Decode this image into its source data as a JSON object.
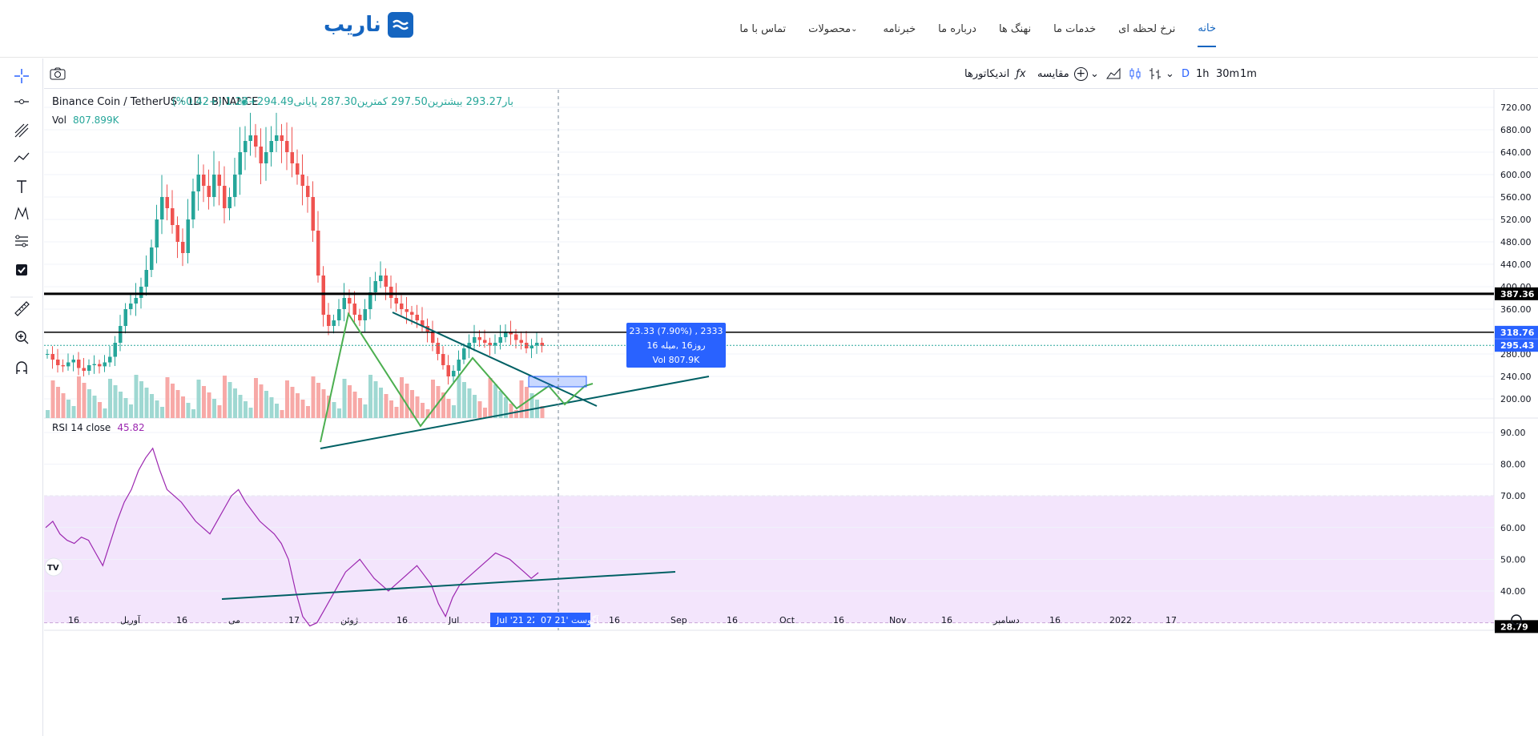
{
  "site": {
    "logo_text": "ناریب",
    "nav": [
      {
        "label": "خانه",
        "active": true
      },
      {
        "label": "نرخ لحظه ای"
      },
      {
        "label": "خدمات ما"
      },
      {
        "label": "نهنگ ها"
      },
      {
        "label": "درباره ما"
      },
      {
        "label": "خبرنامه"
      },
      {
        "label": "محصولات"
      },
      {
        "label": "تماس با ما"
      }
    ]
  },
  "toolbar": {
    "intervals": [
      "1m",
      "30m",
      "1h",
      "D"
    ],
    "indicators_label": "اندیکاتورها",
    "compare_label": "مقایسه"
  },
  "legend": {
    "symbol": "Binance Coin / TetherUS · 1D · BINANCE",
    "ohlc": "بار293.27  بیشترین297.50  کمترین287.30  پایانی294.49+1.23 (+0.42%)",
    "vol_label": "Vol",
    "vol_value": "807.899K",
    "rsi_label": "RSI 14 close",
    "rsi_value": "45.82"
  },
  "measure_tooltip": {
    "line1": "23.33 (7.90%) , 2333",
    "line2": "روز16 ,میله 16",
    "line3": "Vol 807.9K"
  },
  "price_badges": [
    "387.36",
    "318.76",
    "295.43"
  ],
  "rsi_badge": "28.79",
  "colors": {
    "up": "#26a69a",
    "down": "#ef5350",
    "accent": "#2962ff",
    "pattern": "#4caf50",
    "trend": "#006064",
    "rsi": "#9c27b0"
  },
  "chart_data": [
    {
      "type": "candlestick",
      "title": "Binance Coin / TetherUS · 1D · BINANCE",
      "price_axis": [
        720,
        680,
        640,
        600,
        560,
        520,
        480,
        440,
        400,
        360,
        320,
        280,
        240,
        200
      ],
      "time_axis": [
        "16",
        "آوریل",
        "16",
        "می",
        "17",
        "ژوئن",
        "16",
        "Jul",
        "Jul '21 22",
        "07 آگوست '21",
        "16",
        "Sep",
        "16",
        "Oct",
        "16",
        "Nov",
        "16",
        "دسامبر",
        "16",
        "2022",
        "17"
      ],
      "horizontal_lines": [
        387.36,
        318.76,
        295.43
      ],
      "closes_approx": [
        280,
        270,
        260,
        258,
        265,
        270,
        255,
        250,
        260,
        262,
        258,
        265,
        275,
        300,
        330,
        360,
        370,
        380,
        400,
        430,
        470,
        520,
        560,
        540,
        510,
        480,
        460,
        520,
        570,
        600,
        580,
        560,
        600,
        580,
        540,
        560,
        600,
        640,
        660,
        670,
        650,
        620,
        640,
        660,
        670,
        660,
        640,
        620,
        600,
        580,
        560,
        500,
        420,
        350,
        330,
        340,
        360,
        380,
        370,
        350,
        340,
        360,
        390,
        410,
        420,
        400,
        380,
        370,
        360,
        355,
        350,
        340,
        330,
        320,
        300,
        280,
        260,
        240,
        250,
        270,
        290,
        300,
        310,
        305,
        300,
        295,
        300,
        310,
        320,
        315,
        305,
        300,
        290,
        295,
        300,
        294.49
      ]
    },
    {
      "type": "line",
      "title": "RSI 14 close",
      "value_axis": [
        90,
        80,
        70,
        60,
        50,
        40
      ],
      "band": [
        30,
        70
      ],
      "last_value": 45.82,
      "values_approx": [
        60,
        62,
        58,
        56,
        55,
        57,
        56,
        52,
        48,
        55,
        62,
        68,
        72,
        78,
        82,
        85,
        78,
        72,
        70,
        68,
        65,
        62,
        60,
        58,
        62,
        66,
        70,
        72,
        68,
        65,
        62,
        60,
        58,
        55,
        50,
        40,
        32,
        29,
        30,
        34,
        38,
        42,
        46,
        48,
        50,
        47,
        44,
        42,
        40,
        42,
        44,
        46,
        48,
        45,
        42,
        36,
        32,
        38,
        42,
        44,
        46,
        48,
        50,
        52,
        51,
        50,
        48,
        46,
        44,
        45.82
      ]
    }
  ]
}
